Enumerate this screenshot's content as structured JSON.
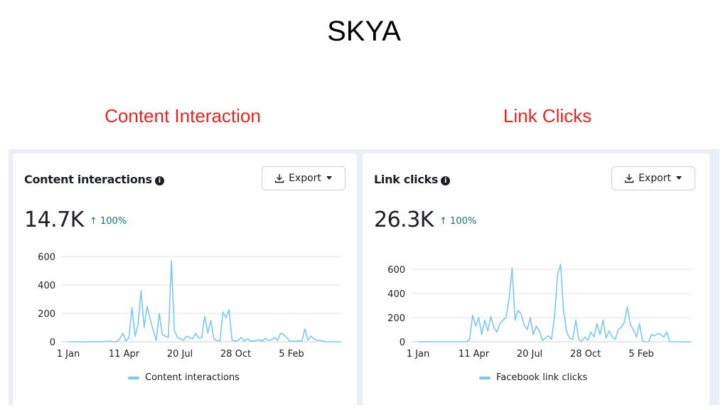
{
  "slide_title": "SKYA",
  "sections": [
    "Content Interaction",
    "Link Clicks"
  ],
  "accent_colors": {
    "section_title": "#e8251f",
    "series": "#7cc8f0",
    "delta": "#0f7b6c"
  },
  "cards": [
    {
      "title": "Content interactions",
      "info_icon": "info-icon",
      "export_label": "Export",
      "total": "14.7K",
      "delta": "↑ 100%",
      "legend": "Content interactions"
    },
    {
      "title": "Link clicks",
      "info_icon": "info-icon",
      "export_label": "Export",
      "total": "26.3K",
      "delta": "↑ 100%",
      "legend": "Facebook link clicks"
    }
  ],
  "chart_data": [
    {
      "type": "line",
      "series": [
        {
          "name": "Content interactions",
          "values": [
            0,
            0,
            0,
            0,
            0,
            0,
            0,
            0,
            2,
            0,
            1,
            0,
            3,
            2,
            5,
            0,
            2,
            20,
            60,
            5,
            30,
            240,
            40,
            120,
            360,
            100,
            250,
            160,
            80,
            10,
            200,
            50,
            40,
            30,
            570,
            80,
            30,
            20,
            10,
            40,
            30,
            20,
            60,
            25,
            30,
            180,
            60,
            150,
            20,
            10,
            5,
            210,
            170,
            225,
            10,
            5,
            10,
            30,
            5,
            20,
            8,
            5,
            10,
            15,
            5,
            25,
            10,
            15,
            30,
            10,
            60,
            50,
            30,
            5,
            5,
            3,
            8,
            4,
            90,
            10,
            40,
            20,
            10,
            10,
            5,
            0,
            0,
            0,
            0,
            0,
            0
          ]
        }
      ],
      "x_tick_labels": [
        "1 Jan",
        "11 Apr",
        "20 Jul",
        "28 Oct",
        "5 Feb"
      ],
      "y_tick_labels": [
        "0",
        "200",
        "400",
        "600"
      ],
      "ylim": [
        0,
        600
      ],
      "grid": true,
      "legend_position": "bottom-center"
    },
    {
      "type": "line",
      "series": [
        {
          "name": "Facebook link clicks",
          "values": [
            0,
            0,
            0,
            0,
            0,
            0,
            0,
            0,
            0,
            0,
            0,
            0,
            0,
            0,
            0,
            0,
            0,
            20,
            220,
            130,
            200,
            60,
            180,
            90,
            210,
            120,
            80,
            150,
            180,
            200,
            350,
            610,
            180,
            260,
            230,
            140,
            100,
            200,
            60,
            130,
            90,
            10,
            30,
            50,
            20,
            210,
            560,
            640,
            250,
            80,
            30,
            20,
            180,
            20,
            5,
            40,
            10,
            80,
            40,
            150,
            60,
            180,
            30,
            90,
            40,
            20,
            100,
            120,
            160,
            290,
            140,
            100,
            40,
            150,
            10,
            0,
            0,
            60,
            50,
            70,
            60,
            40,
            80,
            0,
            0,
            0,
            0,
            0,
            0,
            0,
            0
          ]
        }
      ],
      "x_tick_labels": [
        "1 Jan",
        "11 Apr",
        "20 Jul",
        "28 Oct",
        "5 Feb"
      ],
      "y_tick_labels": [
        "0",
        "200",
        "400",
        "600"
      ],
      "ylim": [
        0,
        700
      ],
      "grid": true,
      "legend_position": "bottom-center"
    }
  ]
}
